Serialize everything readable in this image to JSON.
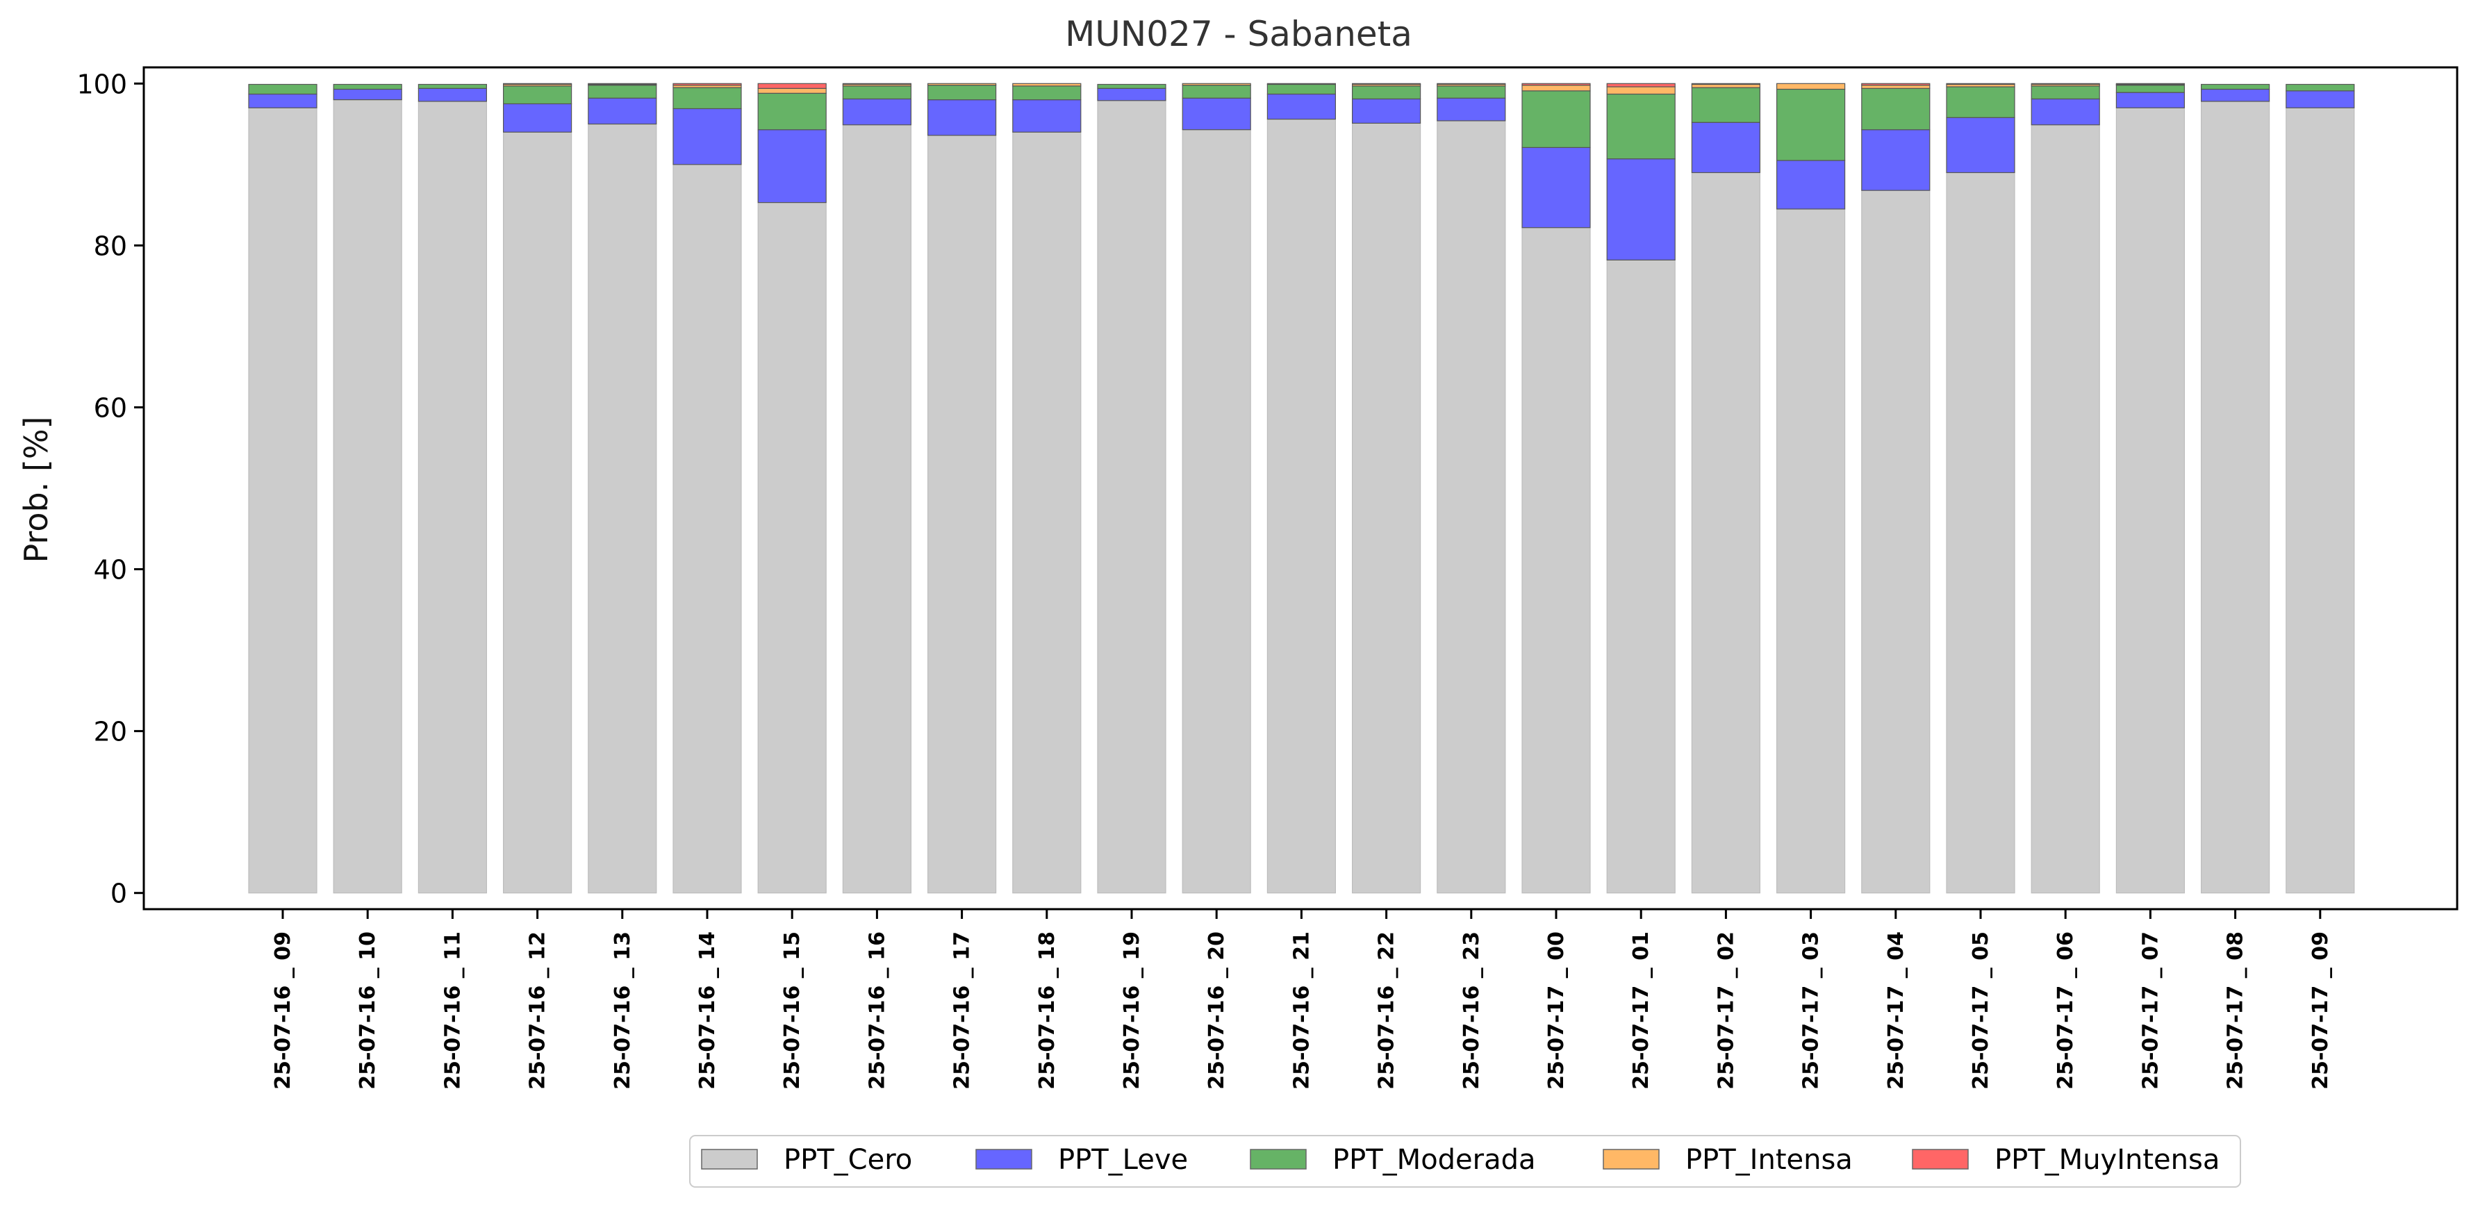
{
  "chart_data": {
    "type": "bar",
    "stacked": true,
    "title": "MUN027 - Sabaneta",
    "xlabel": "",
    "ylabel": "Prob. [%]",
    "ylim": [
      -2,
      102
    ],
    "yticks": [
      0,
      20,
      40,
      60,
      80,
      100
    ],
    "grid": false,
    "legend_position": "bottom-center",
    "categories": [
      "25-07-16 _ 09",
      "25-07-16 _ 10",
      "25-07-16 _ 11",
      "25-07-16 _ 12",
      "25-07-16 _ 13",
      "25-07-16 _ 14",
      "25-07-16 _ 15",
      "25-07-16 _ 16",
      "25-07-16 _ 17",
      "25-07-16 _ 18",
      "25-07-16 _ 19",
      "25-07-16 _ 20",
      "25-07-16 _ 21",
      "25-07-16 _ 22",
      "25-07-16 _ 23",
      "25-07-17 _ 00",
      "25-07-17 _ 01",
      "25-07-17 _ 02",
      "25-07-17 _ 03",
      "25-07-17 _ 04",
      "25-07-17 _ 05",
      "25-07-17 _ 06",
      "25-07-17 _ 07",
      "25-07-17 _ 08",
      "25-07-17 _ 09"
    ],
    "series": [
      {
        "name": "PPT_Cero",
        "color": "#cccccc",
        "values": [
          97,
          98,
          97.8,
          94,
          95,
          90,
          85.3,
          94.9,
          93.6,
          94,
          97.9,
          94.3,
          95.6,
          95.1,
          95.4,
          82.2,
          78.2,
          89,
          84.5,
          86.8,
          89,
          94.9,
          97,
          97.8,
          97
        ]
      },
      {
        "name": "PPT_Leve",
        "color": "#6666ff",
        "values": [
          1.7,
          1.3,
          1.6,
          3.5,
          3.2,
          6.9,
          9,
          3.2,
          4.4,
          4,
          1.5,
          3.9,
          3.1,
          3,
          2.8,
          9.9,
          12.5,
          6.2,
          6,
          7.5,
          6.8,
          3.2,
          1.9,
          1.5,
          2.1
        ]
      },
      {
        "name": "PPT_Moderada",
        "color": "#66b366",
        "values": [
          1.2,
          0.6,
          0.5,
          2.2,
          1.6,
          2.6,
          4.5,
          1.6,
          1.8,
          1.7,
          0.5,
          1.6,
          1.2,
          1.6,
          1.5,
          7,
          8,
          4.3,
          8.8,
          5.1,
          3.8,
          1.6,
          0.9,
          0.6,
          0.8
        ]
      },
      {
        "name": "PPT_Intensa",
        "color": "#ffb866",
        "values": [
          0,
          0,
          0,
          0.2,
          0.1,
          0.3,
          0.6,
          0.2,
          0.2,
          0.3,
          0,
          0.2,
          0.1,
          0.2,
          0.2,
          0.7,
          0.9,
          0.4,
          0.7,
          0.4,
          0.3,
          0.2,
          0.1,
          0,
          0
        ]
      },
      {
        "name": "PPT_MuyIntensa",
        "color": "#ff6666",
        "values": [
          0,
          0,
          0,
          0.1,
          0.1,
          0.2,
          0.6,
          0.1,
          0,
          0,
          0,
          0,
          0,
          0.1,
          0.1,
          0.2,
          0.4,
          0.1,
          0,
          0.2,
          0.1,
          0.1,
          0.1,
          0,
          0
        ]
      }
    ]
  }
}
